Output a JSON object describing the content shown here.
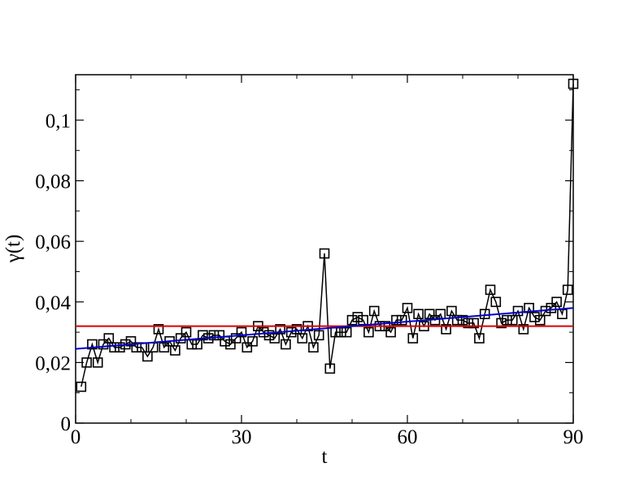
{
  "chart_data": {
    "type": "line",
    "x_label": "t",
    "y_label": "γ(t)",
    "xlim": [
      0,
      90
    ],
    "ylim": [
      0,
      0.115
    ],
    "xticks": [
      0,
      30,
      60,
      90
    ],
    "yticks": [
      0,
      {
        "value": 0.02,
        "label": "0,02"
      },
      {
        "value": 0.04,
        "label": "0,04"
      },
      {
        "value": 0.06,
        "label": "0,06"
      },
      {
        "value": 0.08,
        "label": "0,08"
      },
      {
        "value": 0.1,
        "label": "0,1"
      }
    ],
    "grid": false,
    "series": [
      {
        "color": "#000000",
        "marker": "square",
        "x": [
          1,
          2,
          3,
          4,
          5,
          6,
          7,
          8,
          9,
          10,
          11,
          12,
          13,
          14,
          15,
          16,
          17,
          18,
          19,
          20,
          21,
          22,
          23,
          24,
          25,
          26,
          27,
          28,
          29,
          30,
          31,
          32,
          33,
          34,
          35,
          36,
          37,
          38,
          39,
          40,
          41,
          42,
          43,
          44,
          45,
          46,
          47,
          48,
          49,
          50,
          51,
          52,
          53,
          54,
          55,
          56,
          57,
          58,
          59,
          60,
          61,
          62,
          63,
          64,
          65,
          66,
          67,
          68,
          69,
          70,
          71,
          72,
          73,
          74,
          75,
          76,
          77,
          78,
          79,
          80,
          81,
          82,
          83,
          84,
          85,
          86,
          87,
          88,
          89,
          90
        ],
        "values": [
          0.012,
          0.02,
          0.026,
          0.02,
          0.026,
          0.028,
          0.025,
          0.025,
          0.026,
          0.027,
          0.025,
          0.025,
          0.022,
          0.025,
          0.031,
          0.025,
          0.027,
          0.024,
          0.028,
          0.03,
          0.026,
          0.026,
          0.029,
          0.028,
          0.029,
          0.029,
          0.027,
          0.026,
          0.028,
          0.03,
          0.025,
          0.027,
          0.032,
          0.03,
          0.029,
          0.028,
          0.031,
          0.026,
          0.03,
          0.031,
          0.028,
          0.032,
          0.025,
          0.029,
          0.056,
          0.018,
          0.03,
          0.03,
          0.03,
          0.034,
          0.035,
          0.034,
          0.03,
          0.037,
          0.032,
          0.032,
          0.03,
          0.034,
          0.034,
          0.038,
          0.028,
          0.036,
          0.032,
          0.036,
          0.034,
          0.036,
          0.031,
          0.037,
          0.034,
          0.034,
          0.033,
          0.033,
          0.028,
          0.036,
          0.044,
          0.04,
          0.033,
          0.034,
          0.034,
          0.037,
          0.031,
          0.038,
          0.035,
          0.034,
          0.037,
          0.038,
          0.04,
          0.036,
          0.044,
          0.112
        ]
      },
      {
        "color": "#dd0000",
        "x": [
          0,
          90
        ],
        "values": [
          0.032,
          0.032
        ]
      },
      {
        "color": "#0000cc",
        "x": [
          0,
          90
        ],
        "values": [
          0.0245,
          0.038
        ]
      }
    ]
  }
}
